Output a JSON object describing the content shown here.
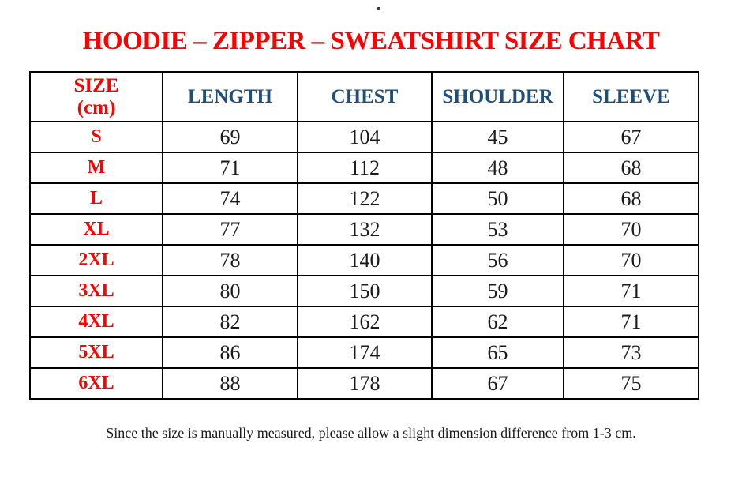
{
  "page": {
    "stray_dot": ".",
    "title": "HOODIE – ZIPPER – SWEATSHIRT SIZE CHART",
    "footnote": "Since the size is manually measured, please allow a slight dimension difference from 1-3 cm."
  },
  "colors": {
    "title_red": "#ff0000",
    "size_label_red": "#ff0000",
    "header_blue": "#1f4e79",
    "value_black": "#1a1a1a",
    "border_black": "#000000",
    "background": "#ffffff"
  },
  "table": {
    "header": {
      "size_label": "SIZE",
      "size_unit": "(cm)",
      "columns": [
        "LENGTH",
        "CHEST",
        "SHOULDER",
        "SLEEVE"
      ]
    },
    "rows": [
      {
        "size": "S",
        "length": "69",
        "chest": "104",
        "shoulder": "45",
        "sleeve": "67"
      },
      {
        "size": "M",
        "length": "71",
        "chest": "112",
        "shoulder": "48",
        "sleeve": "68"
      },
      {
        "size": "L",
        "length": "74",
        "chest": "122",
        "shoulder": "50",
        "sleeve": "68"
      },
      {
        "size": "XL",
        "length": "77",
        "chest": "132",
        "shoulder": "53",
        "sleeve": "70"
      },
      {
        "size": "2XL",
        "length": "78",
        "chest": "140",
        "shoulder": "56",
        "sleeve": "70"
      },
      {
        "size": "3XL",
        "length": "80",
        "chest": "150",
        "shoulder": "59",
        "sleeve": "71"
      },
      {
        "size": "4XL",
        "length": "82",
        "chest": "162",
        "shoulder": "62",
        "sleeve": "71"
      },
      {
        "size": "5XL",
        "length": "86",
        "chest": "174",
        "shoulder": "65",
        "sleeve": "73"
      },
      {
        "size": "6XL",
        "length": "88",
        "chest": "178",
        "shoulder": "67",
        "sleeve": "75"
      }
    ]
  }
}
